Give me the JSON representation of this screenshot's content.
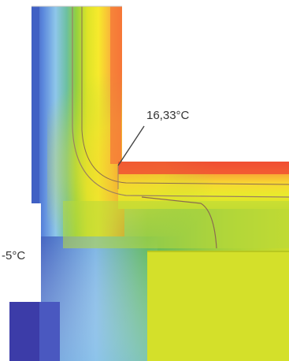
{
  "diagram": {
    "interior_isotherm_label": "16,33°C",
    "exterior_temperature_label": "-5°C"
  },
  "colors": {
    "background": "#ffffff",
    "cold_dark": "#3a3aa4",
    "cold": "#4f7fd8",
    "cool": "#86c4e8",
    "mid_green": "#5ab048",
    "yellow_green": "#cfdc28",
    "yellow": "#f4ec30",
    "orange": "#f8a030",
    "warm_red": "#f04a30",
    "isotherm_line": "#8a7060"
  }
}
